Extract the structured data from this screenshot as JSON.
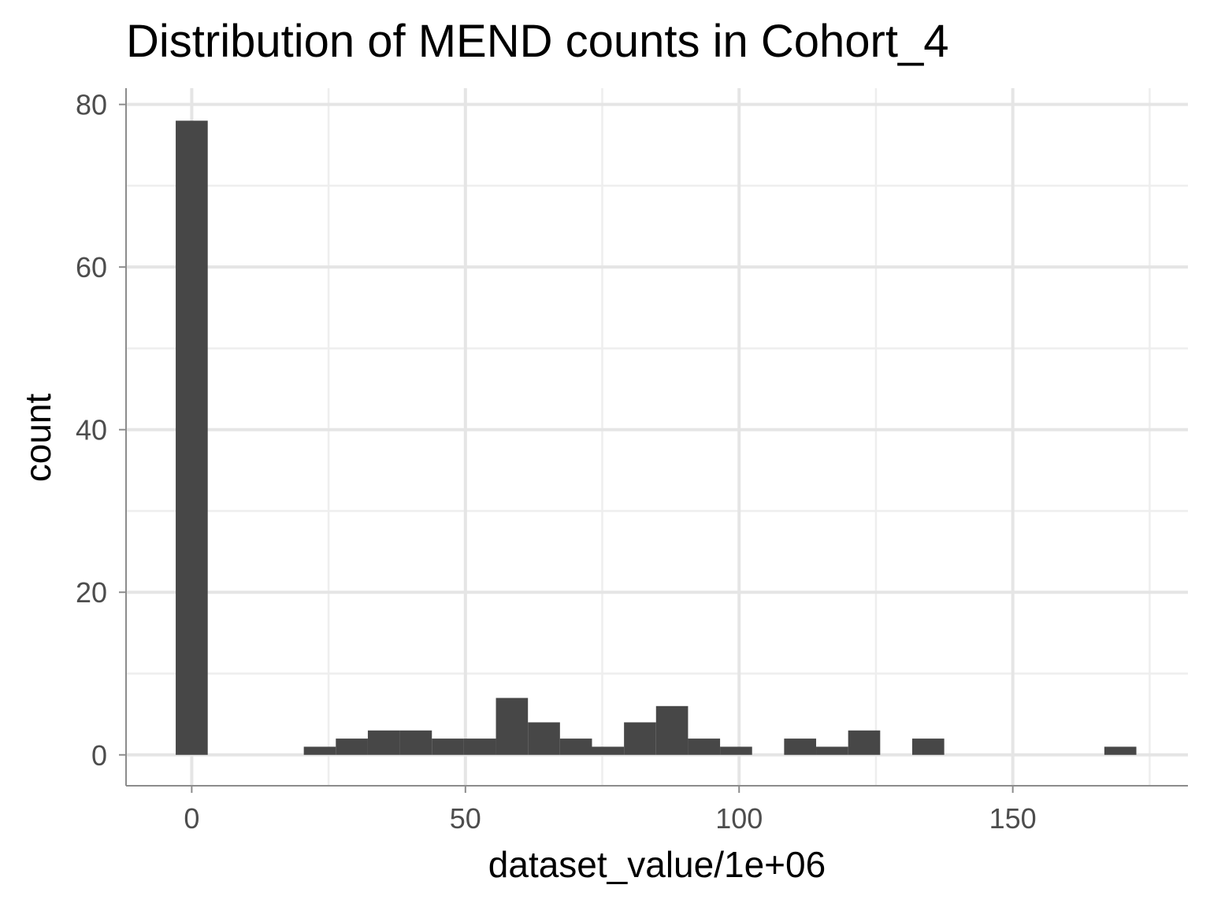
{
  "chart_data": {
    "type": "bar",
    "title": "Distribution of MEND counts in Cohort_4",
    "xlabel": "dataset_value/1e+06",
    "ylabel": "count",
    "xlim": [
      -12,
      182
    ],
    "ylim": [
      -3.8,
      82
    ],
    "x_ticks": [
      0,
      50,
      100,
      150
    ],
    "y_ticks": [
      0,
      20,
      40,
      60,
      80
    ],
    "x_tick_labels": [
      "0",
      "50",
      "100",
      "150"
    ],
    "y_tick_labels": [
      "0",
      "20",
      "40",
      "60",
      "80"
    ],
    "bin_width": 5.85,
    "bins": [
      {
        "x": 0.0,
        "count": 78
      },
      {
        "x": 23.4,
        "count": 1
      },
      {
        "x": 29.25,
        "count": 2
      },
      {
        "x": 35.1,
        "count": 3
      },
      {
        "x": 40.95,
        "count": 3
      },
      {
        "x": 46.8,
        "count": 2
      },
      {
        "x": 52.65,
        "count": 2
      },
      {
        "x": 58.5,
        "count": 7
      },
      {
        "x": 64.35,
        "count": 4
      },
      {
        "x": 70.2,
        "count": 2
      },
      {
        "x": 76.05,
        "count": 1
      },
      {
        "x": 81.9,
        "count": 4
      },
      {
        "x": 87.75,
        "count": 6
      },
      {
        "x": 93.6,
        "count": 2
      },
      {
        "x": 99.45,
        "count": 1
      },
      {
        "x": 111.15,
        "count": 2
      },
      {
        "x": 117.0,
        "count": 1
      },
      {
        "x": 122.85,
        "count": 3
      },
      {
        "x": 134.55,
        "count": 2
      },
      {
        "x": 169.65,
        "count": 1
      }
    ],
    "grid": true,
    "bar_color": "#474747"
  }
}
